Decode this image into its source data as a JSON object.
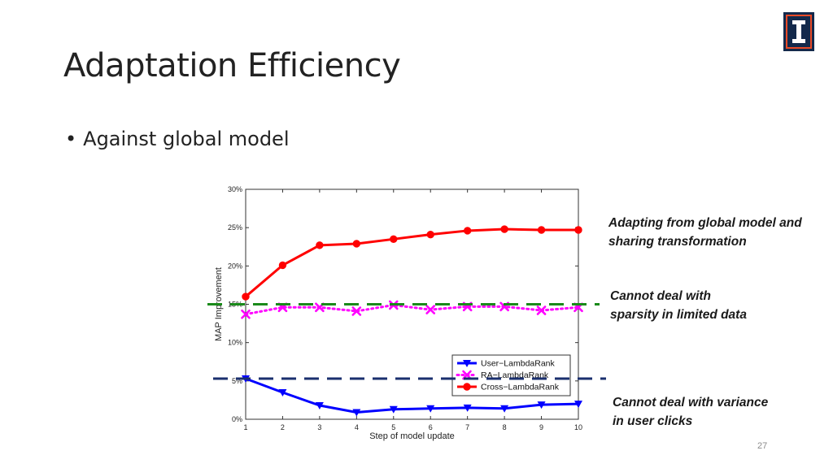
{
  "slide": {
    "title": "Adaptation Efficiency",
    "bullet": "Against global model",
    "page_number": "27",
    "logo_icon": "illinois-block-i-logo",
    "logo_colors": {
      "outer": "#13294b",
      "frame": "#e84a27",
      "inner": "#13294b",
      "letter": "#ffffff"
    }
  },
  "annotations": [
    {
      "text": "Adapting from global model and sharing transformation"
    },
    {
      "text": "Cannot deal with sparsity in limited data"
    },
    {
      "text": "Cannot deal with variance in user clicks"
    }
  ],
  "chart_data": {
    "type": "line",
    "xlabel": "Step of model update",
    "ylabel": "MAP Improvement",
    "x": [
      1,
      2,
      3,
      4,
      5,
      6,
      7,
      8,
      9,
      10
    ],
    "xlim": [
      1,
      10
    ],
    "ylim": [
      0,
      30
    ],
    "y_ticks": [
      0,
      5,
      10,
      15,
      20,
      25,
      30
    ],
    "y_tick_labels": [
      "0%",
      "5%",
      "10%",
      "15%",
      "20%",
      "25%",
      "30%"
    ],
    "x_tick_labels": [
      "1",
      "2",
      "3",
      "4",
      "5",
      "6",
      "7",
      "8",
      "9",
      "10"
    ],
    "grid": false,
    "legend_position": "bottom-right",
    "series": [
      {
        "name": "User−LambdaRank",
        "color": "#0000ff",
        "marker": "triangle-down",
        "line": "solid",
        "values": [
          5.3,
          3.5,
          1.8,
          0.9,
          1.3,
          1.4,
          1.5,
          1.4,
          1.9,
          2.0
        ]
      },
      {
        "name": "RA−LambdaRank",
        "color": "#ff00ff",
        "marker": "x",
        "line": "dotted",
        "values": [
          13.7,
          14.6,
          14.6,
          14.1,
          14.9,
          14.3,
          14.7,
          14.7,
          14.2,
          14.6
        ]
      },
      {
        "name": "Cross−LambdaRank",
        "color": "#ff0000",
        "marker": "circle",
        "line": "solid",
        "values": [
          16.0,
          20.1,
          22.7,
          22.9,
          23.5,
          24.1,
          24.6,
          24.8,
          24.7,
          24.7
        ]
      }
    ],
    "reference_lines": [
      {
        "value": 15,
        "color": "#1a8a1a",
        "style": "dashed"
      },
      {
        "value": 5.3,
        "color": "#1a2f6e",
        "style": "dashed"
      }
    ]
  }
}
